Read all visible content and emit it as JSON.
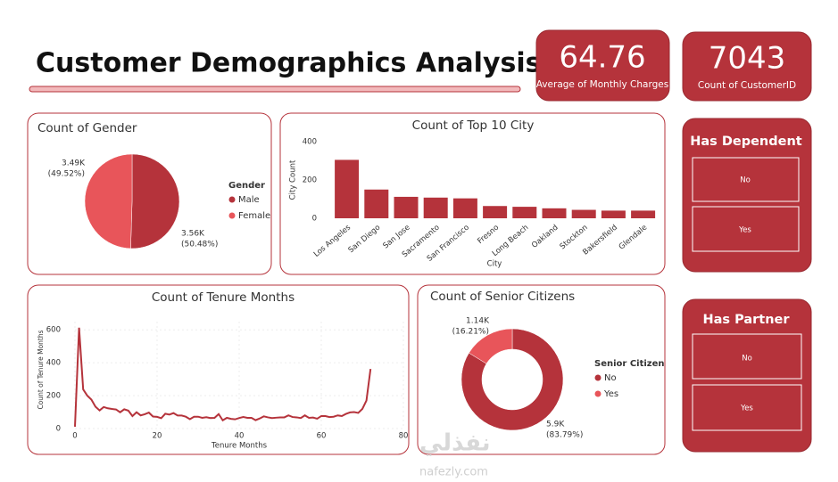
{
  "title": "Customer Demographics Analysis",
  "kpis": [
    {
      "value": 64.76,
      "label": "Average of Monthly Charges"
    },
    {
      "value": 7043,
      "label": "Count of CustomerID"
    }
  ],
  "slicers": [
    {
      "title": "Has Dependent",
      "items": [
        "No",
        "Yes"
      ]
    },
    {
      "title": "Has Partner",
      "items": [
        "No",
        "Yes"
      ]
    }
  ],
  "watermark": {
    "logo": "نفذلي",
    "url": "nafezly.com"
  },
  "chart_data": [
    {
      "type": "pie",
      "title": "Count of Gender",
      "legend_title": "Gender",
      "categories": [
        "Male",
        "Female"
      ],
      "values": [
        3555,
        3488
      ],
      "colors": [
        "#b5333b",
        "#e8555a"
      ],
      "value_labels": [
        "3.56K",
        "3.49K"
      ],
      "percent_labels": [
        "(50.48%)",
        "(49.52%)"
      ]
    },
    {
      "type": "bar",
      "title": "Count of Top 10 City",
      "x_label": "City",
      "y_label": "City Count",
      "categories": [
        "Los Angeles",
        "San Diego",
        "San Jose",
        "Sacramento",
        "San Francisco",
        "Fresno",
        "Long Beach",
        "Oakland",
        "Stockton",
        "Bakersfield",
        "Glendale"
      ],
      "values": [
        305,
        150,
        112,
        108,
        104,
        64,
        60,
        52,
        44,
        40,
        40
      ],
      "color": "#b5333b",
      "ylim": [
        0,
        400
      ],
      "yticks": [
        0,
        200,
        400
      ]
    },
    {
      "type": "line",
      "title": "Count of Tenure Months",
      "x_label": "Tenure Months",
      "y_label": "Count of Tenure Months",
      "color": "#b5333b",
      "x": [
        0,
        1,
        2,
        3,
        4,
        5,
        6,
        7,
        8,
        9,
        10,
        11,
        12,
        13,
        14,
        15,
        16,
        17,
        18,
        19,
        20,
        21,
        22,
        23,
        24,
        25,
        26,
        27,
        28,
        29,
        30,
        31,
        32,
        33,
        34,
        35,
        36,
        37,
        38,
        39,
        40,
        41,
        42,
        43,
        44,
        45,
        46,
        47,
        48,
        49,
        50,
        51,
        52,
        53,
        54,
        55,
        56,
        57,
        58,
        59,
        60,
        61,
        62,
        63,
        64,
        65,
        66,
        67,
        68,
        69,
        70,
        71,
        72
      ],
      "values": [
        11,
        613,
        238,
        200,
        176,
        133,
        110,
        131,
        123,
        119,
        116,
        99,
        117,
        109,
        76,
        99,
        80,
        87,
        97,
        73,
        71,
        63,
        90,
        85,
        94,
        79,
        79,
        72,
        57,
        72,
        72,
        65,
        69,
        64,
        65,
        88,
        50,
        65,
        59,
        56,
        64,
        70,
        65,
        65,
        51,
        61,
        74,
        68,
        64,
        66,
        68,
        68,
        80,
        70,
        68,
        64,
        80,
        65,
        67,
        60,
        76,
        76,
        70,
        72,
        80,
        76,
        89,
        98,
        100,
        95,
        119,
        170,
        362
      ],
      "xlim": [
        0,
        80
      ],
      "xticks": [
        0,
        20,
        40,
        60,
        80
      ],
      "ylim": [
        0,
        650
      ],
      "yticks": [
        0,
        200,
        400,
        600
      ],
      "grid": true
    },
    {
      "type": "donut",
      "title": "Count of Senior Citizens",
      "legend_title": "Senior Citizen",
      "categories": [
        "No",
        "Yes"
      ],
      "values": [
        5901,
        1142
      ],
      "colors": [
        "#b5333b",
        "#e8555a"
      ],
      "value_labels": [
        "5.9K",
        "1.14K"
      ],
      "percent_labels": [
        "(83.79%)",
        "(16.21%)"
      ]
    }
  ]
}
